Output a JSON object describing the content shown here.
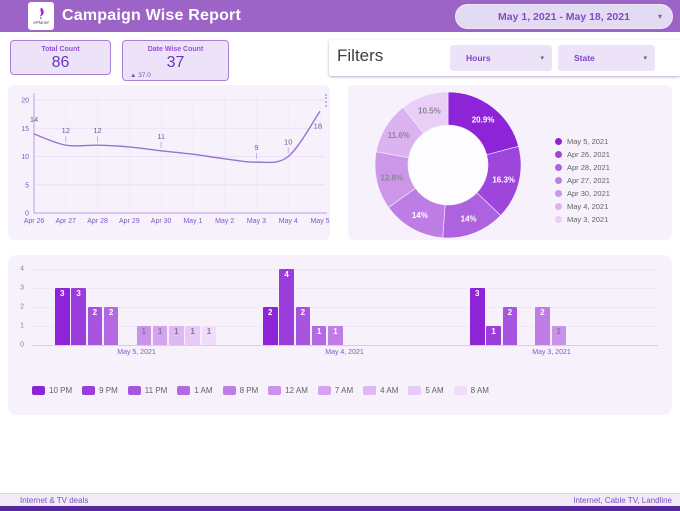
{
  "header": {
    "logo_text": "ePlanet",
    "title": "Campaign Wise Report",
    "date_range": "May 1, 2021 - May 18, 2021",
    "caret": "▾"
  },
  "stats": {
    "total": {
      "label": "Total Count",
      "value": "86"
    },
    "datewise": {
      "label": "Date Wise Count",
      "value": "37",
      "delta": "▲ 37.0"
    }
  },
  "filters": {
    "title": "Filters",
    "hours_label": "Hours",
    "state_label": "State",
    "caret": "▾"
  },
  "footer": {
    "left": "Internet & TV deals",
    "right": "Internet, Cable TV, Landline"
  },
  "colors": {
    "header_bg": "#9c64c7",
    "accent_text": "#7c4fc0",
    "panel_bg": "#f7f1fc",
    "line": "#9575cd",
    "footer_strip": "#54289b",
    "palette": [
      "#8d24d8",
      "#9a3ddb",
      "#a755de",
      "#b369e1",
      "#bf7ee5",
      "#ca92e9",
      "#d4a5ee",
      "#deb8f2",
      "#e7caf6",
      "#f0ddfa"
    ],
    "donut_palette": [
      "#8d24d8",
      "#9e46db",
      "#ad62df",
      "#bd7de4",
      "#cc97e9",
      "#dbb3f0",
      "#e9cef6"
    ]
  },
  "chart_data": [
    {
      "type": "line",
      "x": [
        "Apr 26",
        "Apr 27",
        "Apr 28",
        "Apr 29",
        "Apr 30",
        "May 1",
        "May 2",
        "May 3",
        "May 4",
        "May 5"
      ],
      "values": [
        14,
        12,
        12,
        11.7,
        11,
        10.4,
        9.6,
        9,
        10,
        18
      ],
      "point_labels": [
        "14",
        "12",
        "12",
        "",
        "11",
        "",
        "",
        "9",
        "10",
        "18"
      ],
      "ylim": [
        0,
        20
      ],
      "yticks": [
        0,
        5,
        10,
        15,
        20
      ],
      "grid": true,
      "legend_position": "none"
    },
    {
      "type": "pie",
      "donut": true,
      "slices": [
        {
          "label": "May 5, 2021",
          "pct": 20.9,
          "display": "20.9%"
        },
        {
          "label": "Apr 26, 2021",
          "pct": 16.3,
          "display": "16.3%"
        },
        {
          "label": "Apr 28, 2021",
          "pct": 14,
          "display": "14%"
        },
        {
          "label": "Apr 27, 2021",
          "pct": 14,
          "display": "14%"
        },
        {
          "label": "Apr 30, 2021",
          "pct": 12.8,
          "display": "12.8%"
        },
        {
          "label": "May 4, 2021",
          "pct": 11.6,
          "display": "11.6%"
        },
        {
          "label": "May 3, 2021",
          "pct": 10.5,
          "display": "10.5%"
        }
      ],
      "legend_position": "right"
    },
    {
      "type": "bar",
      "categories": [
        "May 5, 2021",
        "May 4, 2021",
        "May 3, 2021"
      ],
      "series": [
        {
          "name": "10 PM",
          "values": [
            3,
            2,
            3
          ]
        },
        {
          "name": "9 PM",
          "values": [
            3,
            4,
            1
          ]
        },
        {
          "name": "11 PM",
          "values": [
            2,
            2,
            2
          ]
        },
        {
          "name": "1 AM",
          "values": [
            2,
            1,
            0
          ]
        },
        {
          "name": "8 PM",
          "values": [
            0,
            1,
            2
          ]
        },
        {
          "name": "12 AM",
          "values": [
            1,
            0,
            1
          ]
        },
        {
          "name": "7 AM",
          "values": [
            1,
            0,
            0
          ]
        },
        {
          "name": "4 AM",
          "values": [
            1,
            0,
            0
          ]
        },
        {
          "name": "5 AM",
          "values": [
            1,
            0,
            0
          ]
        },
        {
          "name": "8 AM",
          "values": [
            1,
            0,
            0
          ]
        }
      ],
      "ylim": [
        0,
        4
      ],
      "yticks": [
        0,
        1,
        2,
        3,
        4
      ],
      "legend_position": "bottom"
    }
  ]
}
